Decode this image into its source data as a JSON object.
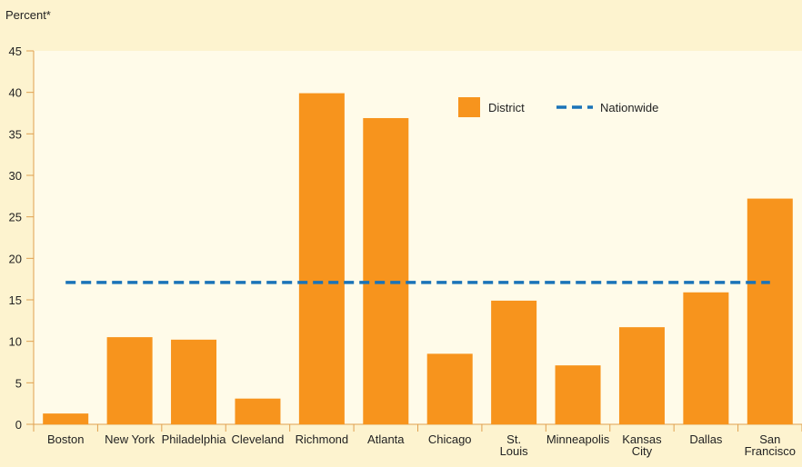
{
  "chart_data": {
    "type": "bar",
    "ylabel": "Percent*",
    "categories": [
      "Boston",
      "New York",
      "Philadelphia",
      "Cleveland",
      "Richmond",
      "Atlanta",
      "Chicago",
      "St. Louis",
      "Minneapolis",
      "Kansas City",
      "Dallas",
      "San Francisco"
    ],
    "series": [
      {
        "name": "District",
        "type": "bar",
        "color": "#f7941d",
        "values": [
          1.3,
          10.5,
          10.2,
          3.1,
          39.9,
          36.9,
          8.5,
          14.9,
          7.1,
          11.7,
          15.9,
          27.2
        ]
      },
      {
        "name": "Nationwide",
        "type": "line",
        "dashed": true,
        "color": "#1a73b8",
        "values": [
          17.1,
          17.1,
          17.1,
          17.1,
          17.1,
          17.1,
          17.1,
          17.1,
          17.1,
          17.1,
          17.1,
          17.1
        ]
      }
    ],
    "ylim": [
      0,
      45
    ],
    "yticks": [
      0,
      5,
      10,
      15,
      20,
      25,
      30,
      35,
      40,
      45
    ],
    "grid": false
  }
}
